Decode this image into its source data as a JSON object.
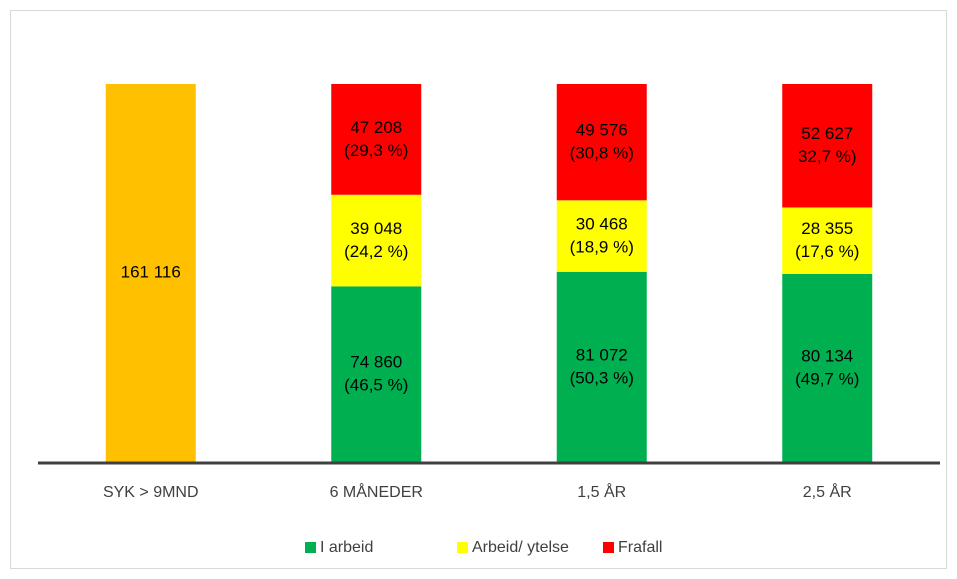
{
  "chart_data": {
    "type": "stacked_bar",
    "categories": [
      "SYK > 9MND",
      "6 MÅNEDER",
      "1,5 ÅR",
      "2,5 ÅR"
    ],
    "total_bar": {
      "value": 161116,
      "value_label": "161 116",
      "color": "#ffc000"
    },
    "series": [
      {
        "name": "I arbeid",
        "color": "#00b050",
        "values": [
          null,
          74860,
          81072,
          80134
        ],
        "value_labels": [
          null,
          "74 860",
          "81 072",
          "80 134"
        ],
        "percents": [
          null,
          46.5,
          50.3,
          49.7
        ],
        "percent_labels": [
          null,
          "(46,5 %)",
          "(50,3 %)",
          "(49,7 %)"
        ]
      },
      {
        "name": "Arbeid/ ytelse",
        "color": "#ffff00",
        "values": [
          null,
          39048,
          30468,
          28355
        ],
        "value_labels": [
          null,
          "39 048",
          "30 468",
          "28 355"
        ],
        "percents": [
          null,
          24.2,
          18.9,
          17.6
        ],
        "percent_labels": [
          null,
          "(24,2 %)",
          "(18,9 %)",
          "(17,6 %)"
        ]
      },
      {
        "name": "Frafall",
        "color": "#ff0000",
        "values": [
          null,
          47208,
          49576,
          52627
        ],
        "value_labels": [
          null,
          "47 208",
          "49 576",
          "52 627"
        ],
        "percents": [
          null,
          29.3,
          30.8,
          32.7
        ],
        "percent_labels": [
          null,
          "(29,3 %)",
          "(30,8 %)",
          "32,7 %)"
        ]
      }
    ],
    "ylim": [
      0,
      161116
    ],
    "legend": "bottom"
  }
}
